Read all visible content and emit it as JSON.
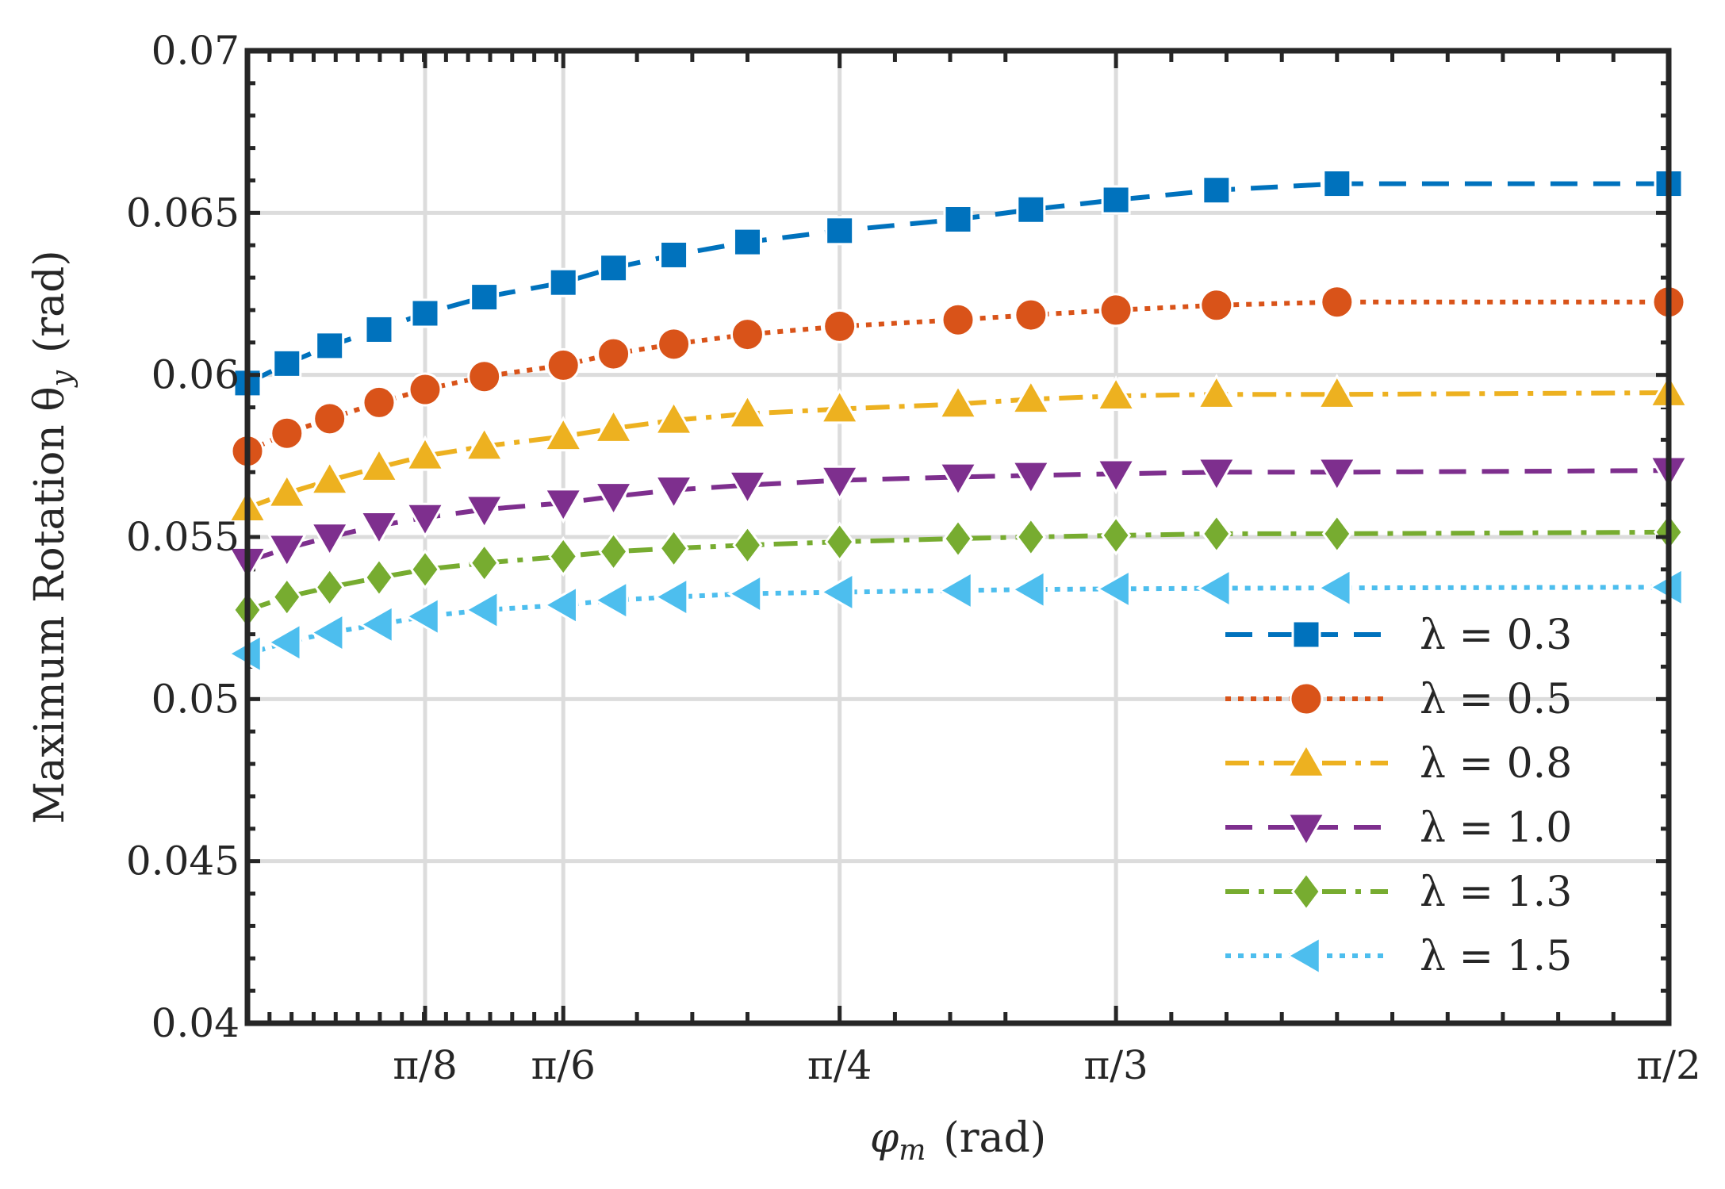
{
  "chart_data": {
    "type": "line",
    "xlabel_symbol": "φ",
    "xlabel_subscript": "m",
    "xlabel_unit": "(rad)",
    "ylabel_text": "Maximum Rotation θ",
    "ylabel_subscript": "y",
    "ylabel_unit": "(rad)",
    "xlim": [
      0.2244,
      1.5708
    ],
    "ylim": [
      0.04,
      0.07
    ],
    "y_ticks": [
      0.04,
      0.045,
      0.05,
      0.055,
      0.06,
      0.065,
      0.07
    ],
    "y_tick_labels": [
      "0.04",
      "0.045",
      "0.05",
      "0.055",
      "0.06",
      "0.065",
      "0.07"
    ],
    "x_ticks": [
      0.3927,
      0.5236,
      0.7854,
      1.0472,
      1.5708
    ],
    "x_tick_labels": [
      "π/8",
      "π/6",
      "π/4",
      "π/3",
      "π/2"
    ],
    "grid": true,
    "legend_position": "bottom-right",
    "x": [
      0.2244,
      0.2618,
      0.3023,
      0.3491,
      0.3927,
      0.4488,
      0.5236,
      0.5712,
      0.6283,
      0.6981,
      0.7854,
      0.8976,
      0.9666,
      1.0472,
      1.1424,
      1.2566,
      1.5708
    ],
    "series": [
      {
        "name": "λ = 0.3",
        "color": "#0072bd",
        "marker": "square",
        "dash": "dashed",
        "values": [
          0.05975,
          0.06035,
          0.0609,
          0.0614,
          0.0619,
          0.0624,
          0.06285,
          0.0633,
          0.0637,
          0.0641,
          0.06445,
          0.0648,
          0.0651,
          0.0654,
          0.0657,
          0.0659,
          0.0659
        ]
      },
      {
        "name": "λ = 0.5",
        "color": "#d95319",
        "marker": "circle",
        "dash": "dotted",
        "values": [
          0.05765,
          0.0582,
          0.05865,
          0.05915,
          0.05955,
          0.05995,
          0.0603,
          0.06065,
          0.06095,
          0.06125,
          0.0615,
          0.0617,
          0.06185,
          0.062,
          0.06215,
          0.06225,
          0.06225
        ]
      },
      {
        "name": "λ = 0.8",
        "color": "#edb120",
        "marker": "triangle-up",
        "dash": "dashdot",
        "values": [
          0.0559,
          0.05635,
          0.05675,
          0.05715,
          0.0575,
          0.0578,
          0.0581,
          0.05835,
          0.0586,
          0.0588,
          0.05895,
          0.0591,
          0.05925,
          0.05935,
          0.0594,
          0.0594,
          0.05945
        ]
      },
      {
        "name": "λ = 1.0",
        "color": "#7e2f8e",
        "marker": "triangle-down",
        "dash": "dashed",
        "values": [
          0.05425,
          0.05465,
          0.055,
          0.05535,
          0.0556,
          0.05585,
          0.05605,
          0.05625,
          0.05645,
          0.0566,
          0.05675,
          0.05685,
          0.0569,
          0.05695,
          0.057,
          0.057,
          0.05705
        ]
      },
      {
        "name": "λ = 1.3",
        "color": "#77ac30",
        "marker": "diamond",
        "dash": "dashdot",
        "values": [
          0.05275,
          0.05315,
          0.05345,
          0.05375,
          0.054,
          0.0542,
          0.0544,
          0.05455,
          0.05465,
          0.05475,
          0.05485,
          0.05495,
          0.055,
          0.05505,
          0.0551,
          0.0551,
          0.05515
        ]
      },
      {
        "name": "λ = 1.5",
        "color": "#4dbeee",
        "marker": "triangle-left",
        "dash": "dotted",
        "values": [
          0.0514,
          0.05175,
          0.05205,
          0.0523,
          0.05255,
          0.05275,
          0.0529,
          0.05305,
          0.05315,
          0.05325,
          0.0533,
          0.05335,
          0.05338,
          0.0534,
          0.05342,
          0.05343,
          0.05345
        ]
      }
    ]
  }
}
